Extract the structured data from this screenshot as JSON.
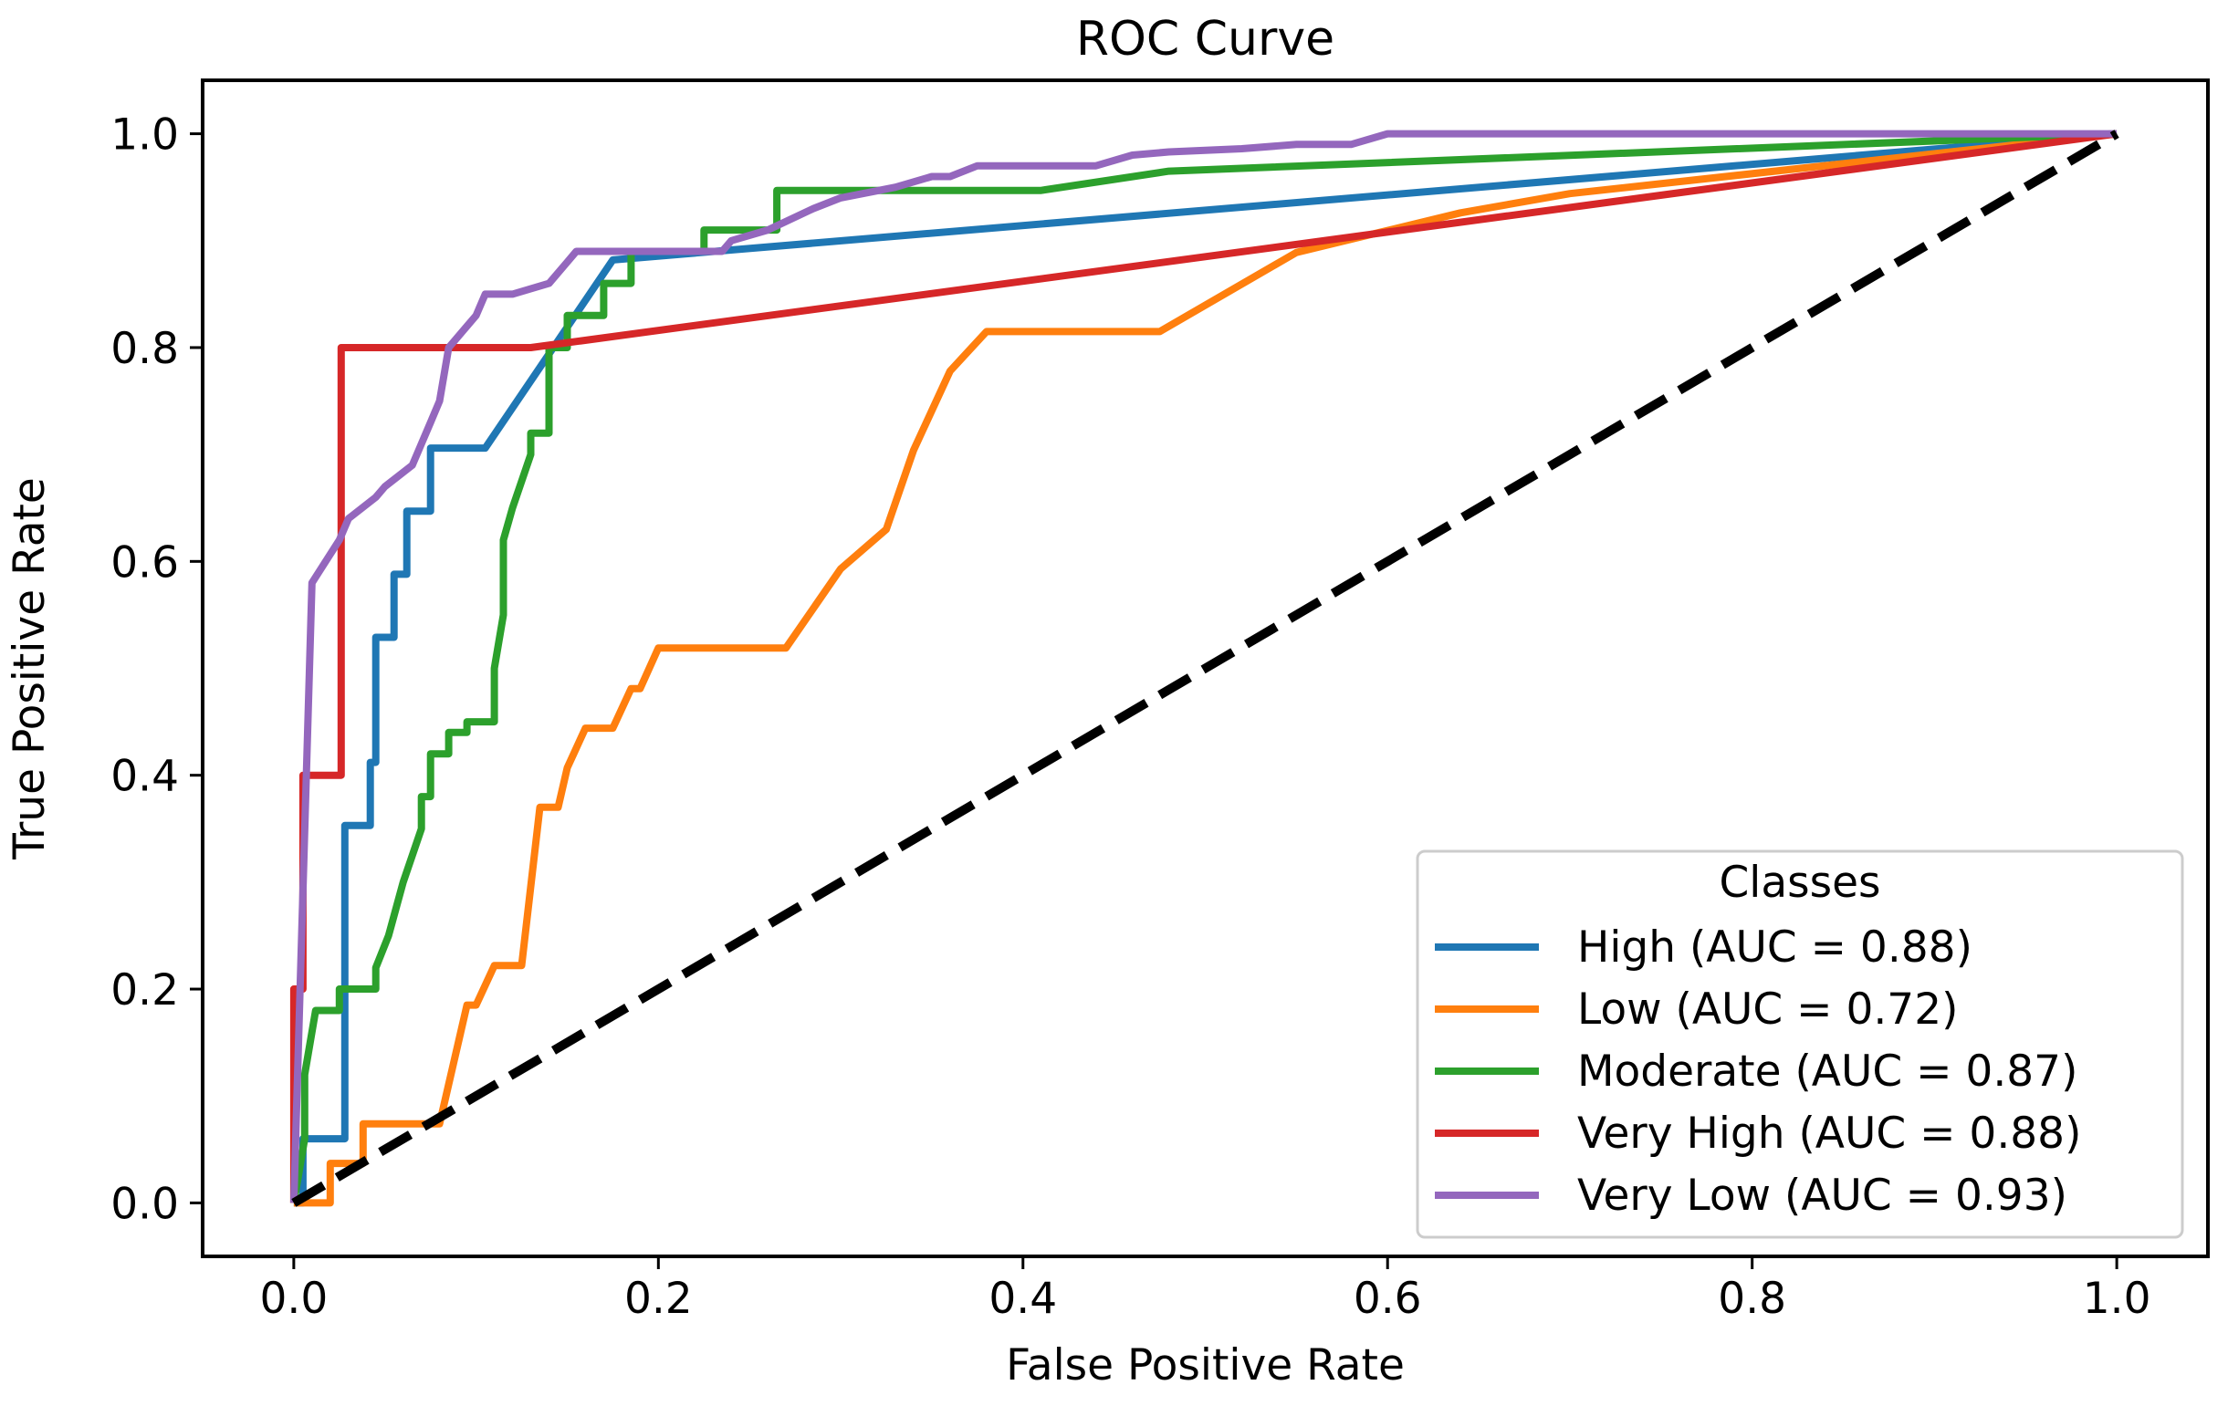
{
  "chart_data": {
    "type": "line",
    "title": "ROC Curve",
    "xlabel": "False Positive Rate",
    "ylabel": "True Positive Rate",
    "xlim": [
      -0.05,
      1.05
    ],
    "ylim": [
      -0.05,
      1.05
    ],
    "xticks": [
      0.0,
      0.2,
      0.4,
      0.6,
      0.8,
      1.0
    ],
    "yticks": [
      0.0,
      0.2,
      0.4,
      0.6,
      0.8,
      1.0
    ],
    "xtick_labels": [
      "0.0",
      "0.2",
      "0.4",
      "0.6",
      "0.8",
      "1.0"
    ],
    "ytick_labels": [
      "0.0",
      "0.2",
      "0.4",
      "0.6",
      "0.8",
      "1.0"
    ],
    "grid": false,
    "legend": {
      "title": "Classes",
      "placement": "lower-right"
    },
    "series": [
      {
        "name": "High (AUC = 0.88)",
        "color": "#1f77b4",
        "x": [
          0.0,
          0.005,
          0.005,
          0.028,
          0.028,
          0.042,
          0.042,
          0.045,
          0.045,
          0.055,
          0.055,
          0.062,
          0.062,
          0.075,
          0.075,
          0.088,
          0.088,
          0.105,
          0.105,
          0.175,
          0.175,
          1.0
        ],
        "y": [
          0.0,
          0.0,
          0.06,
          0.06,
          0.353,
          0.353,
          0.412,
          0.412,
          0.529,
          0.529,
          0.588,
          0.588,
          0.647,
          0.647,
          0.706,
          0.706,
          0.706,
          0.706,
          0.706,
          0.882,
          0.882,
          1.0
        ]
      },
      {
        "name": "Low (AUC = 0.72)",
        "color": "#ff7f0e",
        "x": [
          0.0,
          0.02,
          0.02,
          0.038,
          0.038,
          0.08,
          0.085,
          0.09,
          0.095,
          0.1,
          0.11,
          0.125,
          0.13,
          0.135,
          0.14,
          0.145,
          0.15,
          0.16,
          0.175,
          0.185,
          0.19,
          0.2,
          0.215,
          0.22,
          0.27,
          0.3,
          0.325,
          0.34,
          0.36,
          0.38,
          0.475,
          0.55,
          0.64,
          0.7,
          1.0
        ],
        "y": [
          0.0,
          0.0,
          0.037,
          0.037,
          0.074,
          0.074,
          0.111,
          0.148,
          0.185,
          0.185,
          0.222,
          0.222,
          0.296,
          0.37,
          0.37,
          0.37,
          0.407,
          0.444,
          0.444,
          0.481,
          0.481,
          0.519,
          0.519,
          0.519,
          0.519,
          0.593,
          0.63,
          0.704,
          0.778,
          0.815,
          0.815,
          0.889,
          0.926,
          0.944,
          1.0
        ]
      },
      {
        "name": "Moderate (AUC = 0.87)",
        "color": "#2ca02c",
        "x": [
          0.0,
          0.006,
          0.006,
          0.012,
          0.012,
          0.025,
          0.025,
          0.045,
          0.045,
          0.052,
          0.052,
          0.06,
          0.06,
          0.07,
          0.07,
          0.075,
          0.075,
          0.085,
          0.085,
          0.095,
          0.095,
          0.11,
          0.11,
          0.115,
          0.115,
          0.12,
          0.12,
          0.13,
          0.13,
          0.14,
          0.14,
          0.15,
          0.15,
          0.17,
          0.17,
          0.185,
          0.185,
          0.2,
          0.2,
          0.225,
          0.225,
          0.265,
          0.265,
          0.41,
          0.48,
          1.0
        ],
        "y": [
          0.0,
          0.06,
          0.12,
          0.18,
          0.18,
          0.18,
          0.2,
          0.2,
          0.22,
          0.25,
          0.25,
          0.3,
          0.3,
          0.35,
          0.38,
          0.38,
          0.42,
          0.42,
          0.44,
          0.44,
          0.45,
          0.45,
          0.5,
          0.55,
          0.62,
          0.65,
          0.65,
          0.7,
          0.72,
          0.72,
          0.8,
          0.8,
          0.83,
          0.83,
          0.86,
          0.86,
          0.89,
          0.89,
          0.89,
          0.89,
          0.91,
          0.91,
          0.947,
          0.947,
          0.965,
          1.0
        ]
      },
      {
        "name": "Very High (AUC = 0.88)",
        "color": "#d62728",
        "x": [
          0.0,
          0.0,
          0.005,
          0.005,
          0.026,
          0.026,
          0.045,
          0.13,
          1.0
        ],
        "y": [
          0.0,
          0.2,
          0.2,
          0.4,
          0.4,
          0.8,
          0.8,
          0.8,
          1.0
        ]
      },
      {
        "name": "Very Low (AUC = 0.93)",
        "color": "#9467bd",
        "x": [
          0.0,
          0.01,
          0.01,
          0.025,
          0.03,
          0.045,
          0.05,
          0.065,
          0.07,
          0.075,
          0.08,
          0.085,
          0.085,
          0.095,
          0.1,
          0.105,
          0.12,
          0.14,
          0.15,
          0.155,
          0.235,
          0.24,
          0.26,
          0.285,
          0.3,
          0.33,
          0.35,
          0.36,
          0.375,
          0.44,
          0.46,
          0.48,
          0.52,
          0.55,
          0.58,
          0.6,
          0.61,
          0.66,
          1.0
        ],
        "y": [
          0.0,
          0.58,
          0.58,
          0.62,
          0.64,
          0.66,
          0.67,
          0.69,
          0.71,
          0.73,
          0.75,
          0.8,
          0.8,
          0.82,
          0.83,
          0.85,
          0.85,
          0.86,
          0.88,
          0.89,
          0.89,
          0.9,
          0.91,
          0.93,
          0.94,
          0.95,
          0.96,
          0.96,
          0.97,
          0.97,
          0.98,
          0.983,
          0.986,
          0.99,
          0.99,
          1.0,
          1.0,
          1.0,
          1.0
        ]
      }
    ],
    "reference_line": {
      "style": "dashed",
      "color": "#000000",
      "x": [
        0.0,
        1.0
      ],
      "y": [
        0.0,
        1.0
      ]
    }
  }
}
